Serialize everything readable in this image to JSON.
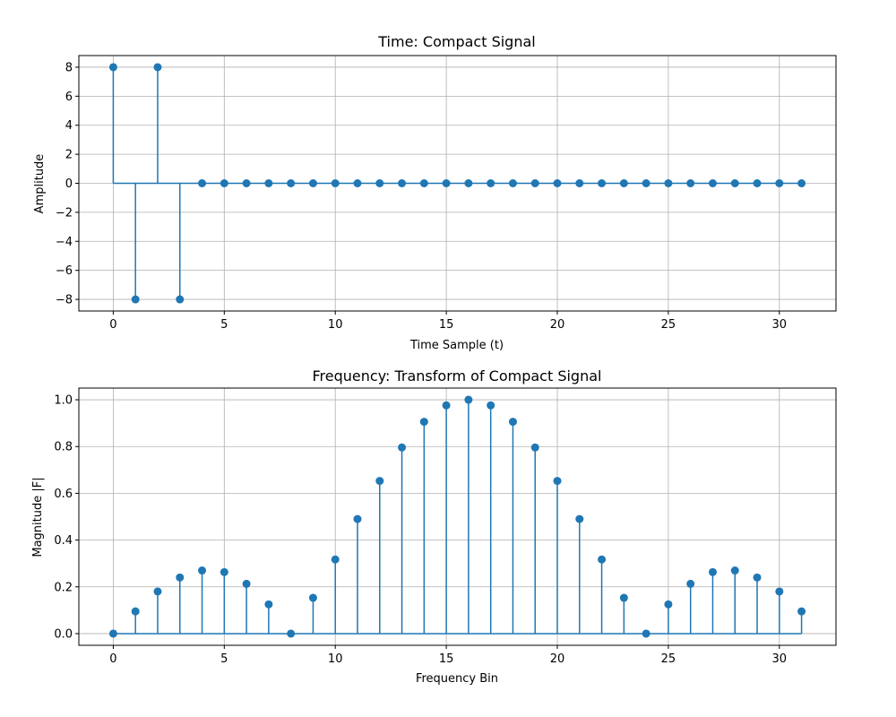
{
  "colors": {
    "series": "#1f77b4",
    "grid": "#b0b0b0",
    "axes": "#000000"
  },
  "chart_data": [
    {
      "type": "stem",
      "title": "Time: Compact Signal",
      "xlabel": "Time Sample (t)",
      "ylabel": "Amplitude",
      "xlim": [
        -1.55,
        32.55
      ],
      "ylim": [
        -8.8,
        8.8
      ],
      "xticks": [
        0,
        5,
        10,
        15,
        20,
        25,
        30
      ],
      "yticks": [
        -8,
        -6,
        -4,
        -2,
        0,
        2,
        4,
        6,
        8
      ],
      "grid": true,
      "x": [
        0,
        1,
        2,
        3,
        4,
        5,
        6,
        7,
        8,
        9,
        10,
        11,
        12,
        13,
        14,
        15,
        16,
        17,
        18,
        19,
        20,
        21,
        22,
        23,
        24,
        25,
        26,
        27,
        28,
        29,
        30,
        31
      ],
      "values": [
        8,
        -8,
        8,
        -8,
        0,
        0,
        0,
        0,
        0,
        0,
        0,
        0,
        0,
        0,
        0,
        0,
        0,
        0,
        0,
        0,
        0,
        0,
        0,
        0,
        0,
        0,
        0,
        0,
        0,
        0,
        0,
        0
      ]
    },
    {
      "type": "stem",
      "title": "Frequency: Transform of Compact Signal",
      "xlabel": "Frequency Bin",
      "ylabel": "Magnitude |F|",
      "xlim": [
        -1.55,
        32.55
      ],
      "ylim": [
        -0.05,
        1.05
      ],
      "xticks": [
        0,
        5,
        10,
        15,
        20,
        25,
        30
      ],
      "yticks": [
        0.0,
        0.2,
        0.4,
        0.6,
        0.8,
        1.0
      ],
      "grid": true,
      "x": [
        0,
        1,
        2,
        3,
        4,
        5,
        6,
        7,
        8,
        9,
        10,
        11,
        12,
        13,
        14,
        15,
        16,
        17,
        18,
        19,
        20,
        21,
        22,
        23,
        24,
        25,
        26,
        27,
        28,
        29,
        30,
        31
      ],
      "values": [
        0.0,
        0.095,
        0.18,
        0.24,
        0.27,
        0.263,
        0.213,
        0.125,
        0.0,
        0.153,
        0.317,
        0.49,
        0.653,
        0.796,
        0.906,
        0.976,
        1.0,
        0.976,
        0.906,
        0.796,
        0.653,
        0.49,
        0.317,
        0.153,
        0.0,
        0.125,
        0.213,
        0.263,
        0.27,
        0.24,
        0.18,
        0.095
      ]
    }
  ]
}
